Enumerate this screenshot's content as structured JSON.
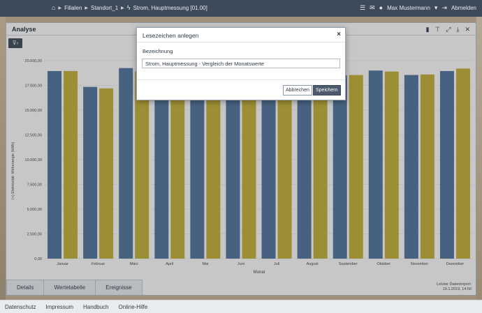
{
  "breadcrumb": {
    "items": [
      "Filialen",
      "Standort_1",
      "Strom, Hauptmessung [01.00]"
    ]
  },
  "user": {
    "name": "Max Mustermann",
    "logout_label": "Abmelden"
  },
  "panel": {
    "title": "Analyse"
  },
  "tabs": [
    {
      "label": "Details"
    },
    {
      "label": "Wertetabelle"
    },
    {
      "label": "Ereignisse"
    }
  ],
  "import_info": {
    "label": "Letzter Datenimport:",
    "value": "19.1.2019, 14:50"
  },
  "footer": {
    "links": [
      "Datenschutz",
      "Impressum",
      "Handbuch",
      "Online-Hilfe"
    ]
  },
  "modal": {
    "title": "Lesezeichen anlegen",
    "field_label": "Bezeichnung",
    "field_value": "Strom, Hauptmessung - Vergleich der Monatswerte",
    "cancel_label": "Abbrechen",
    "save_label": "Speichern"
  },
  "colors": {
    "series_a": "#5b7ea6",
    "series_b": "#c8b743",
    "topbar": "#3d4a5a"
  },
  "chart_data": {
    "type": "bar",
    "categories": [
      "Januar",
      "Februar",
      "März",
      "April",
      "Mai",
      "Juni",
      "Juli",
      "August",
      "September",
      "Oktober",
      "November",
      "Dezember"
    ],
    "series": [
      {
        "values": [
          18950,
          17350,
          19250,
          18900,
          18900,
          18900,
          18950,
          18900,
          18500,
          19000,
          18550,
          18950
        ]
      },
      {
        "values": [
          18950,
          17200,
          18900,
          18900,
          18900,
          18900,
          18900,
          18900,
          18550,
          18900,
          18600,
          19200
        ]
      }
    ],
    "xlabel": "Monat",
    "ylabel": "(+) Elektrizität: Wirkenergie (kWh)",
    "ylim": [
      0,
      20000
    ],
    "yticks": [
      "0,00",
      "2.500,00",
      "5.000,00",
      "7.500,00",
      "10.000,00",
      "12.500,00",
      "15.000,00",
      "17.500,00",
      "20.000,00"
    ],
    "grid": true
  }
}
